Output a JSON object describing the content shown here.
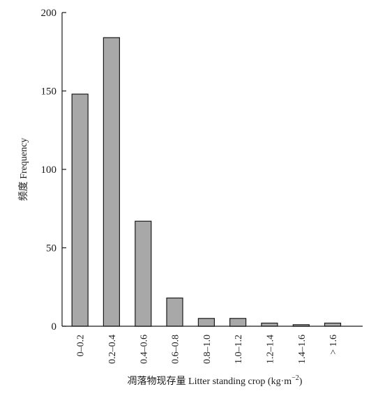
{
  "chart_data": {
    "type": "bar",
    "title": "",
    "xlabel": "凋落物现存量 Litter standing crop (kg·m",
    "xlabel_sup": "−2",
    "xlabel_close": ")",
    "ylabel": "频度 Frequency",
    "categories": [
      "0–0.2",
      "0.2–0.4",
      "0.4–0.6",
      "0.6–0.8",
      "0.8–1.0",
      "1.0–1.2",
      "1.2–1.4",
      "1.4–1.6",
      "> 1.6"
    ],
    "values": [
      148,
      184,
      67,
      18,
      5,
      5,
      2,
      1,
      2
    ],
    "ylim": [
      0,
      200
    ],
    "yticks": [
      0,
      50,
      100,
      150,
      200
    ],
    "grid": false,
    "legend": "none",
    "bar_fill": "#a8a8a8",
    "bar_stroke": "#1a1a1a"
  }
}
